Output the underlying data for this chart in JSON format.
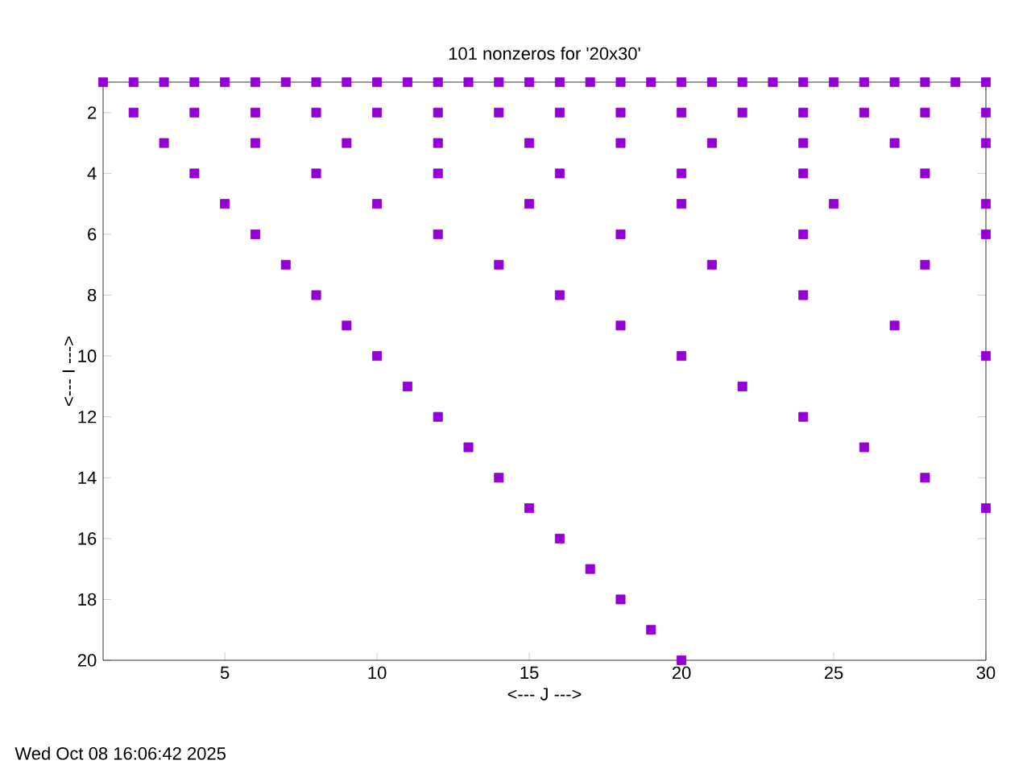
{
  "chart_data": {
    "type": "scatter",
    "title": "101 nonzeros for '20x30'",
    "xlabel": "<--- J --->",
    "ylabel": "<--- I --->",
    "x": [
      1,
      2,
      3,
      4,
      5,
      6,
      7,
      8,
      9,
      10,
      11,
      12,
      13,
      14,
      15,
      16,
      17,
      18,
      19,
      20,
      21,
      22,
      23,
      24,
      25,
      26,
      27,
      28,
      29,
      30,
      2,
      4,
      6,
      8,
      10,
      12,
      14,
      16,
      18,
      20,
      22,
      24,
      26,
      28,
      30,
      3,
      6,
      9,
      12,
      15,
      18,
      21,
      24,
      27,
      30,
      4,
      8,
      12,
      16,
      20,
      24,
      28,
      5,
      10,
      15,
      20,
      25,
      30,
      6,
      12,
      18,
      24,
      30,
      7,
      14,
      21,
      28,
      8,
      16,
      24,
      9,
      18,
      27,
      10,
      20,
      30,
      11,
      22,
      12,
      24,
      13,
      26,
      14,
      28,
      15,
      30,
      16,
      17,
      18,
      19,
      20
    ],
    "series": [
      {
        "color": "#9400d3",
        "values": [
          1,
          1,
          1,
          1,
          1,
          1,
          1,
          1,
          1,
          1,
          1,
          1,
          1,
          1,
          1,
          1,
          1,
          1,
          1,
          1,
          1,
          1,
          1,
          1,
          1,
          1,
          1,
          1,
          1,
          1,
          2,
          2,
          2,
          2,
          2,
          2,
          2,
          2,
          2,
          2,
          2,
          2,
          2,
          2,
          2,
          3,
          3,
          3,
          3,
          3,
          3,
          3,
          3,
          3,
          3,
          4,
          4,
          4,
          4,
          4,
          4,
          4,
          5,
          5,
          5,
          5,
          5,
          5,
          6,
          6,
          6,
          6,
          6,
          7,
          7,
          7,
          7,
          8,
          8,
          8,
          9,
          9,
          9,
          10,
          10,
          10,
          11,
          11,
          12,
          12,
          13,
          13,
          14,
          14,
          15,
          15,
          16,
          17,
          18,
          19,
          20
        ]
      }
    ],
    "xlim": [
      1,
      30
    ],
    "ylim": [
      20,
      1
    ],
    "xticks": [
      5,
      10,
      15,
      20,
      25,
      30
    ],
    "yticks": [
      2,
      4,
      6,
      8,
      10,
      12,
      14,
      16,
      18,
      20
    ],
    "marker": "square",
    "grid": false,
    "annotations": [
      "Wed Oct 08 16:06:42 2025"
    ]
  }
}
